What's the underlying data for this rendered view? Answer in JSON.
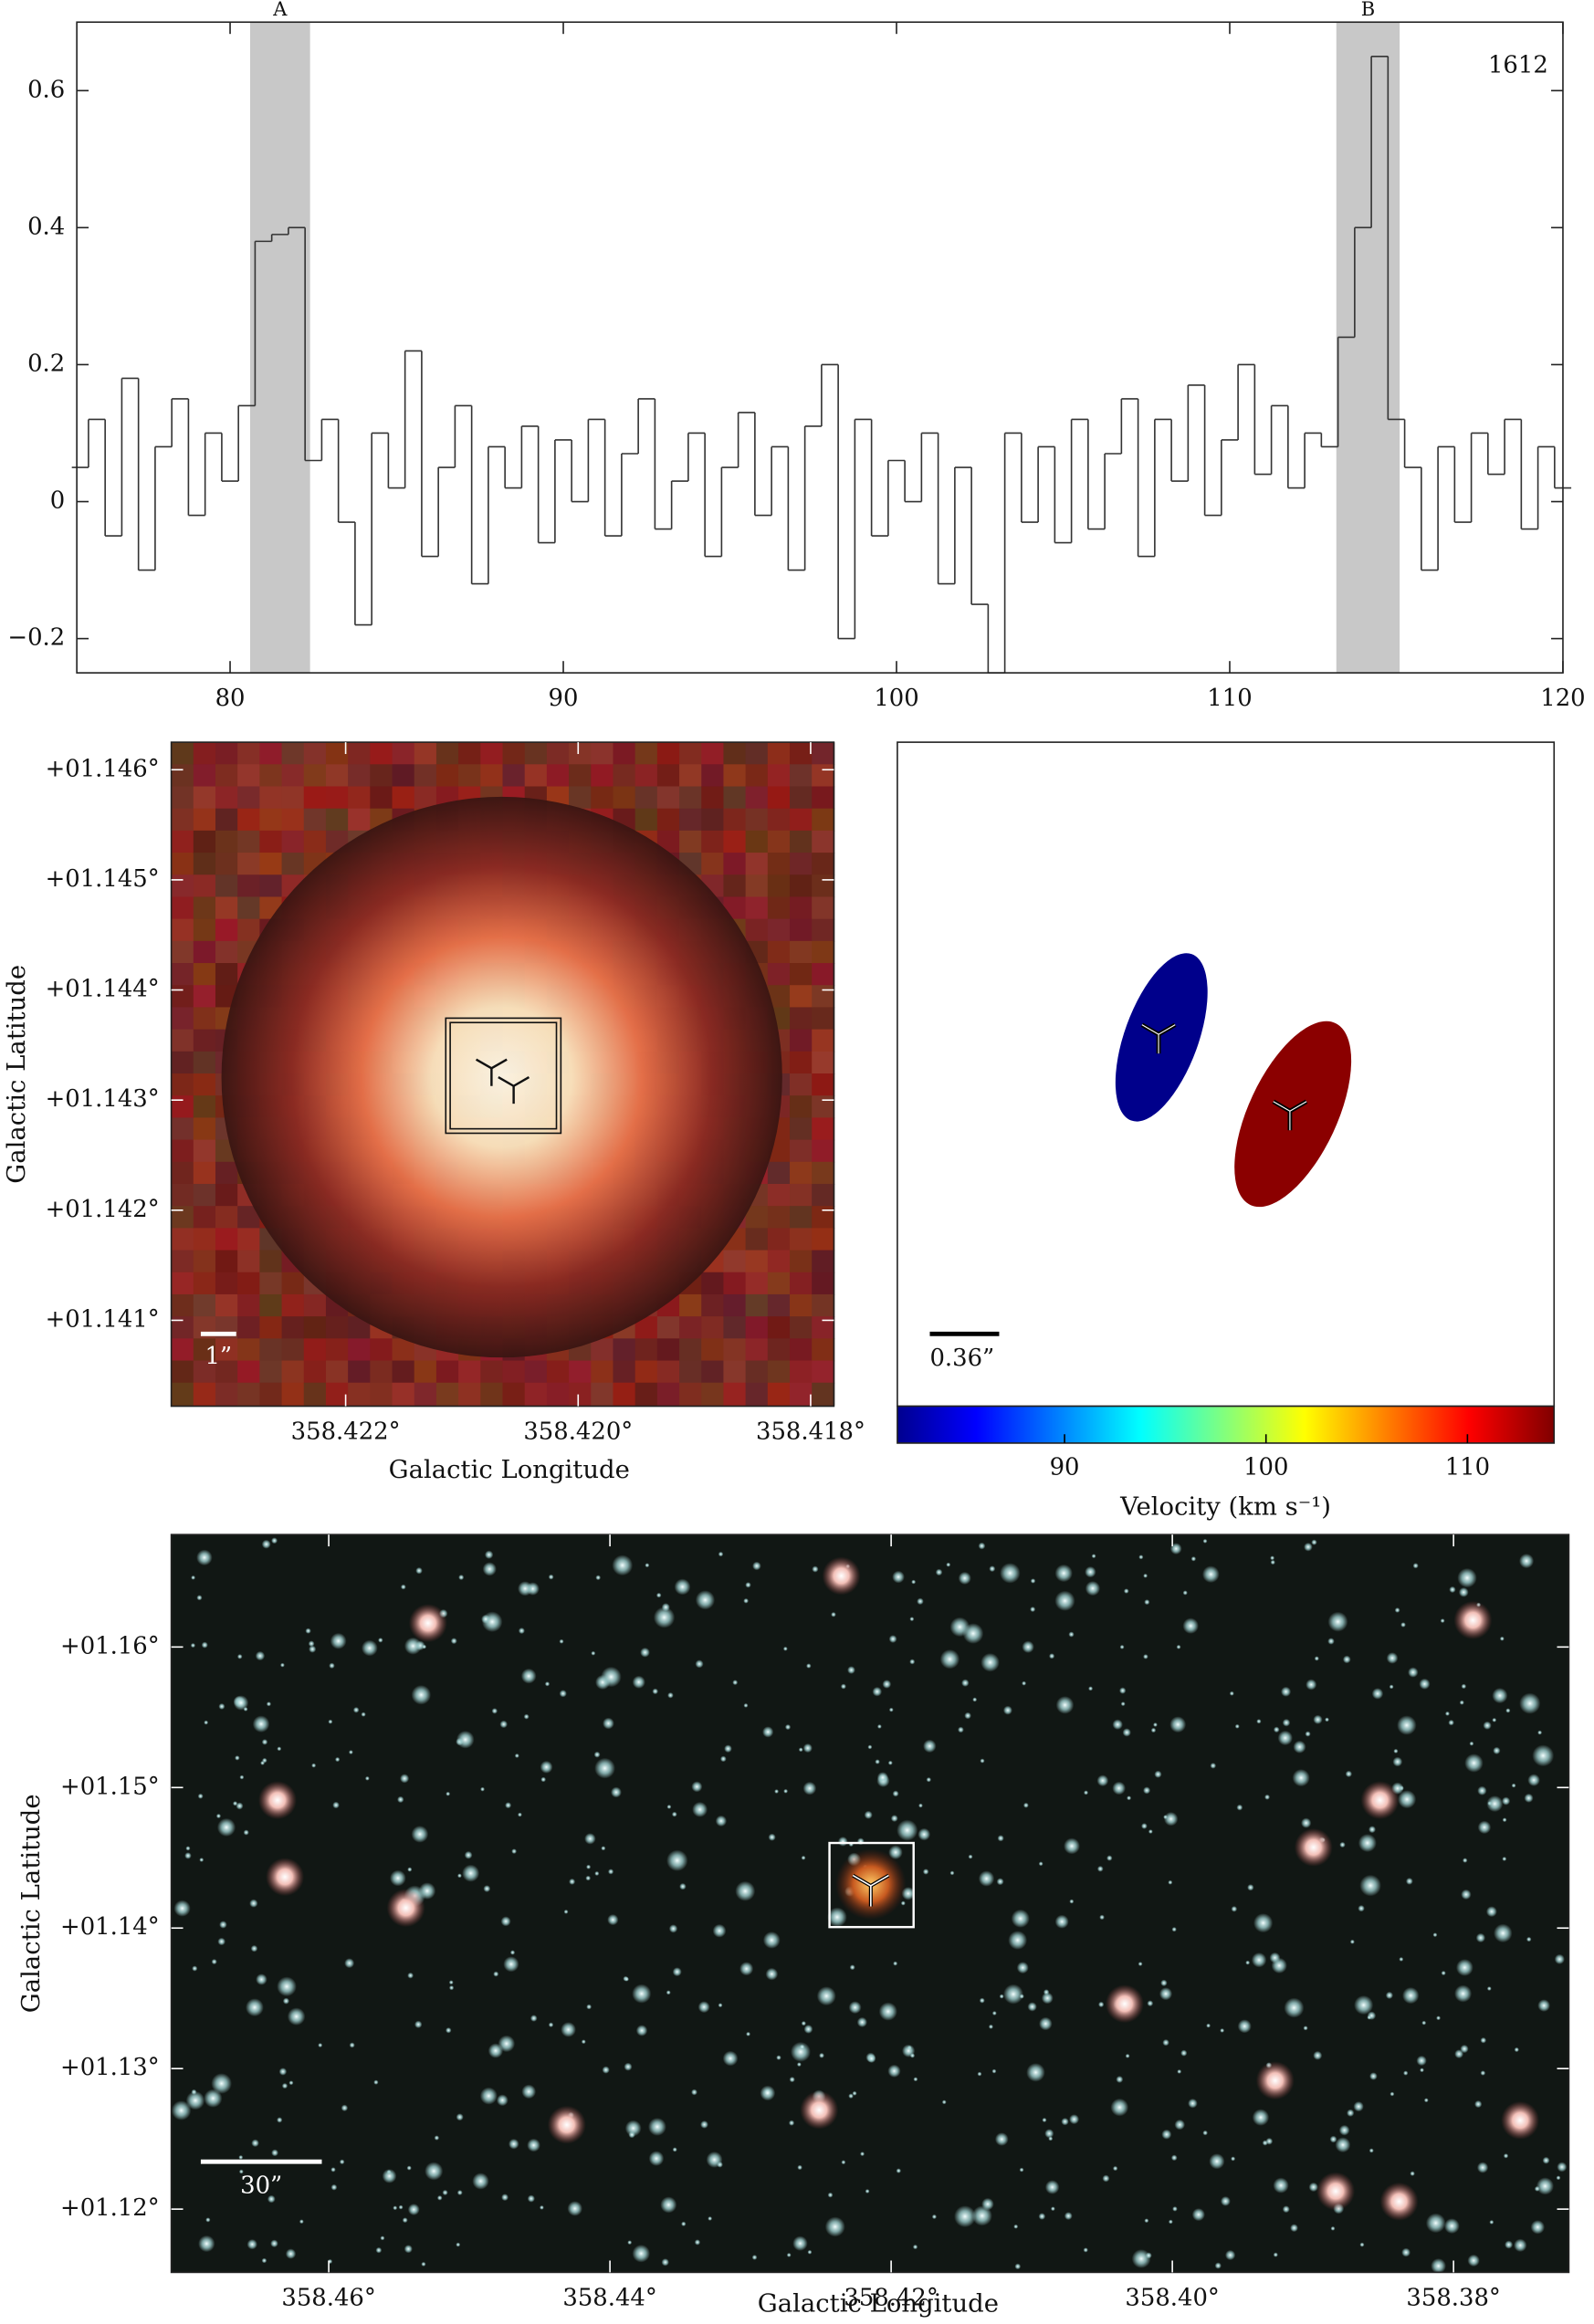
{
  "chart_data": [
    {
      "type": "line",
      "annotation": "1612",
      "regions": [
        {
          "label": "A",
          "range": [
            80.6,
            82.4
          ]
        },
        {
          "label": "B",
          "range": [
            113.2,
            115.1
          ]
        }
      ],
      "x": [
        75.5,
        76,
        76.5,
        77,
        77.5,
        78,
        78.5,
        79,
        79.5,
        80,
        80.5,
        81,
        81.5,
        82,
        82.5,
        83,
        83.5,
        84,
        84.5,
        85,
        85.5,
        86,
        86.5,
        87,
        87.5,
        88,
        88.5,
        89,
        89.5,
        90,
        90.5,
        91,
        91.5,
        92,
        92.5,
        93,
        93.5,
        94,
        94.5,
        95,
        95.5,
        96,
        96.5,
        97,
        97.5,
        98,
        98.5,
        99,
        99.5,
        100,
        100.5,
        101,
        101.5,
        102,
        102.5,
        103,
        103.5,
        104,
        104.5,
        105,
        105.5,
        106,
        106.5,
        107,
        107.5,
        108,
        108.5,
        109,
        109.5,
        110,
        110.5,
        111,
        111.5,
        112,
        112.5,
        113,
        113.5,
        114,
        114.5,
        115,
        115.5,
        116,
        116.5,
        117,
        117.5,
        118,
        118.5,
        119,
        119.5,
        120
      ],
      "values": [
        0.05,
        0.12,
        -0.05,
        0.18,
        -0.1,
        0.08,
        0.15,
        -0.02,
        0.1,
        0.03,
        0.14,
        0.38,
        0.39,
        0.4,
        0.06,
        0.12,
        -0.03,
        -0.18,
        0.1,
        0.02,
        0.22,
        -0.08,
        0.05,
        0.14,
        -0.12,
        0.08,
        0.02,
        0.11,
        -0.06,
        0.09,
        0,
        0.12,
        -0.05,
        0.07,
        0.15,
        -0.04,
        0.03,
        0.1,
        -0.08,
        0.05,
        0.13,
        -0.02,
        0.08,
        -0.1,
        0.11,
        0.2,
        -0.2,
        0.12,
        -0.05,
        0.06,
        0,
        0.1,
        -0.12,
        0.05,
        -0.15,
        -0.25,
        0.1,
        -0.03,
        0.08,
        -0.06,
        0.12,
        -0.04,
        0.07,
        0.15,
        -0.08,
        0.12,
        0.03,
        0.17,
        -0.02,
        0.09,
        0.2,
        0.04,
        0.14,
        0.02,
        0.1,
        0.08,
        0.24,
        0.4,
        0.65,
        0.12,
        0.05,
        -0.1,
        0.08,
        -0.03,
        0.1,
        0.04,
        0.12,
        -0.04,
        0.08,
        0.02
      ],
      "color": "#333333",
      "xlim": [
        75.4,
        120
      ],
      "ylim": [
        -0.25,
        0.7
      ],
      "xticks": [
        80,
        90,
        100,
        110,
        120
      ],
      "yticks": [
        {
          "value": -0.2,
          "label": "−0.2"
        },
        0,
        0.2,
        0.4,
        0.6
      ]
    },
    {
      "type": "image",
      "xlabel": "Galactic Longitude",
      "ylabel": "Galactic Latitude",
      "scale_bar": "1”",
      "xlim": [
        358.4235,
        358.4178
      ],
      "ylim": [
        1.14022,
        1.14625
      ],
      "xticks": [
        {
          "value": 358.422,
          "label": "358.422°"
        },
        {
          "value": 358.42,
          "label": "358.420°"
        },
        {
          "value": 358.418,
          "label": "358.418°"
        }
      ],
      "yticks": [
        {
          "value": 1.146,
          "label": "+01.146°"
        },
        {
          "value": 1.145,
          "label": "+01.145°"
        },
        {
          "value": 1.144,
          "label": "+01.144°"
        },
        {
          "value": 1.143,
          "label": "+01.143°"
        },
        {
          "value": 1.142,
          "label": "+01.142°"
        },
        {
          "value": 1.141,
          "label": "+01.141°"
        }
      ]
    },
    {
      "type": "spots",
      "values": [
        81.5,
        114.2
      ],
      "colors": [
        "#00008b",
        "#8b0000"
      ],
      "scale_bar": "0.36”",
      "clim": [
        81.7,
        114.3
      ],
      "cticks": [
        90,
        100,
        110
      ],
      "clabel": "Velocity (km s⁻¹)"
    },
    {
      "type": "image",
      "xlabel": "Galactic Longitude",
      "ylabel": "Galactic Latitude",
      "scale_bar": "30”",
      "xlim": [
        358.4712,
        358.3718
      ],
      "ylim": [
        1.1155,
        1.168
      ],
      "xticks": [
        {
          "value": 358.46,
          "label": "358.46°"
        },
        {
          "value": 358.44,
          "label": "358.44°"
        },
        {
          "value": 358.42,
          "label": "358.42°"
        },
        {
          "value": 358.4,
          "label": "358.40°"
        },
        {
          "value": 358.38,
          "label": "358.38°"
        }
      ],
      "yticks": [
        {
          "value": 1.16,
          "label": "+01.16°"
        },
        {
          "value": 1.15,
          "label": "+01.15°"
        },
        {
          "value": 1.14,
          "label": "+01.14°"
        },
        {
          "value": 1.13,
          "label": "+01.13°"
        },
        {
          "value": 1.12,
          "label": "+01.12°"
        }
      ]
    }
  ]
}
